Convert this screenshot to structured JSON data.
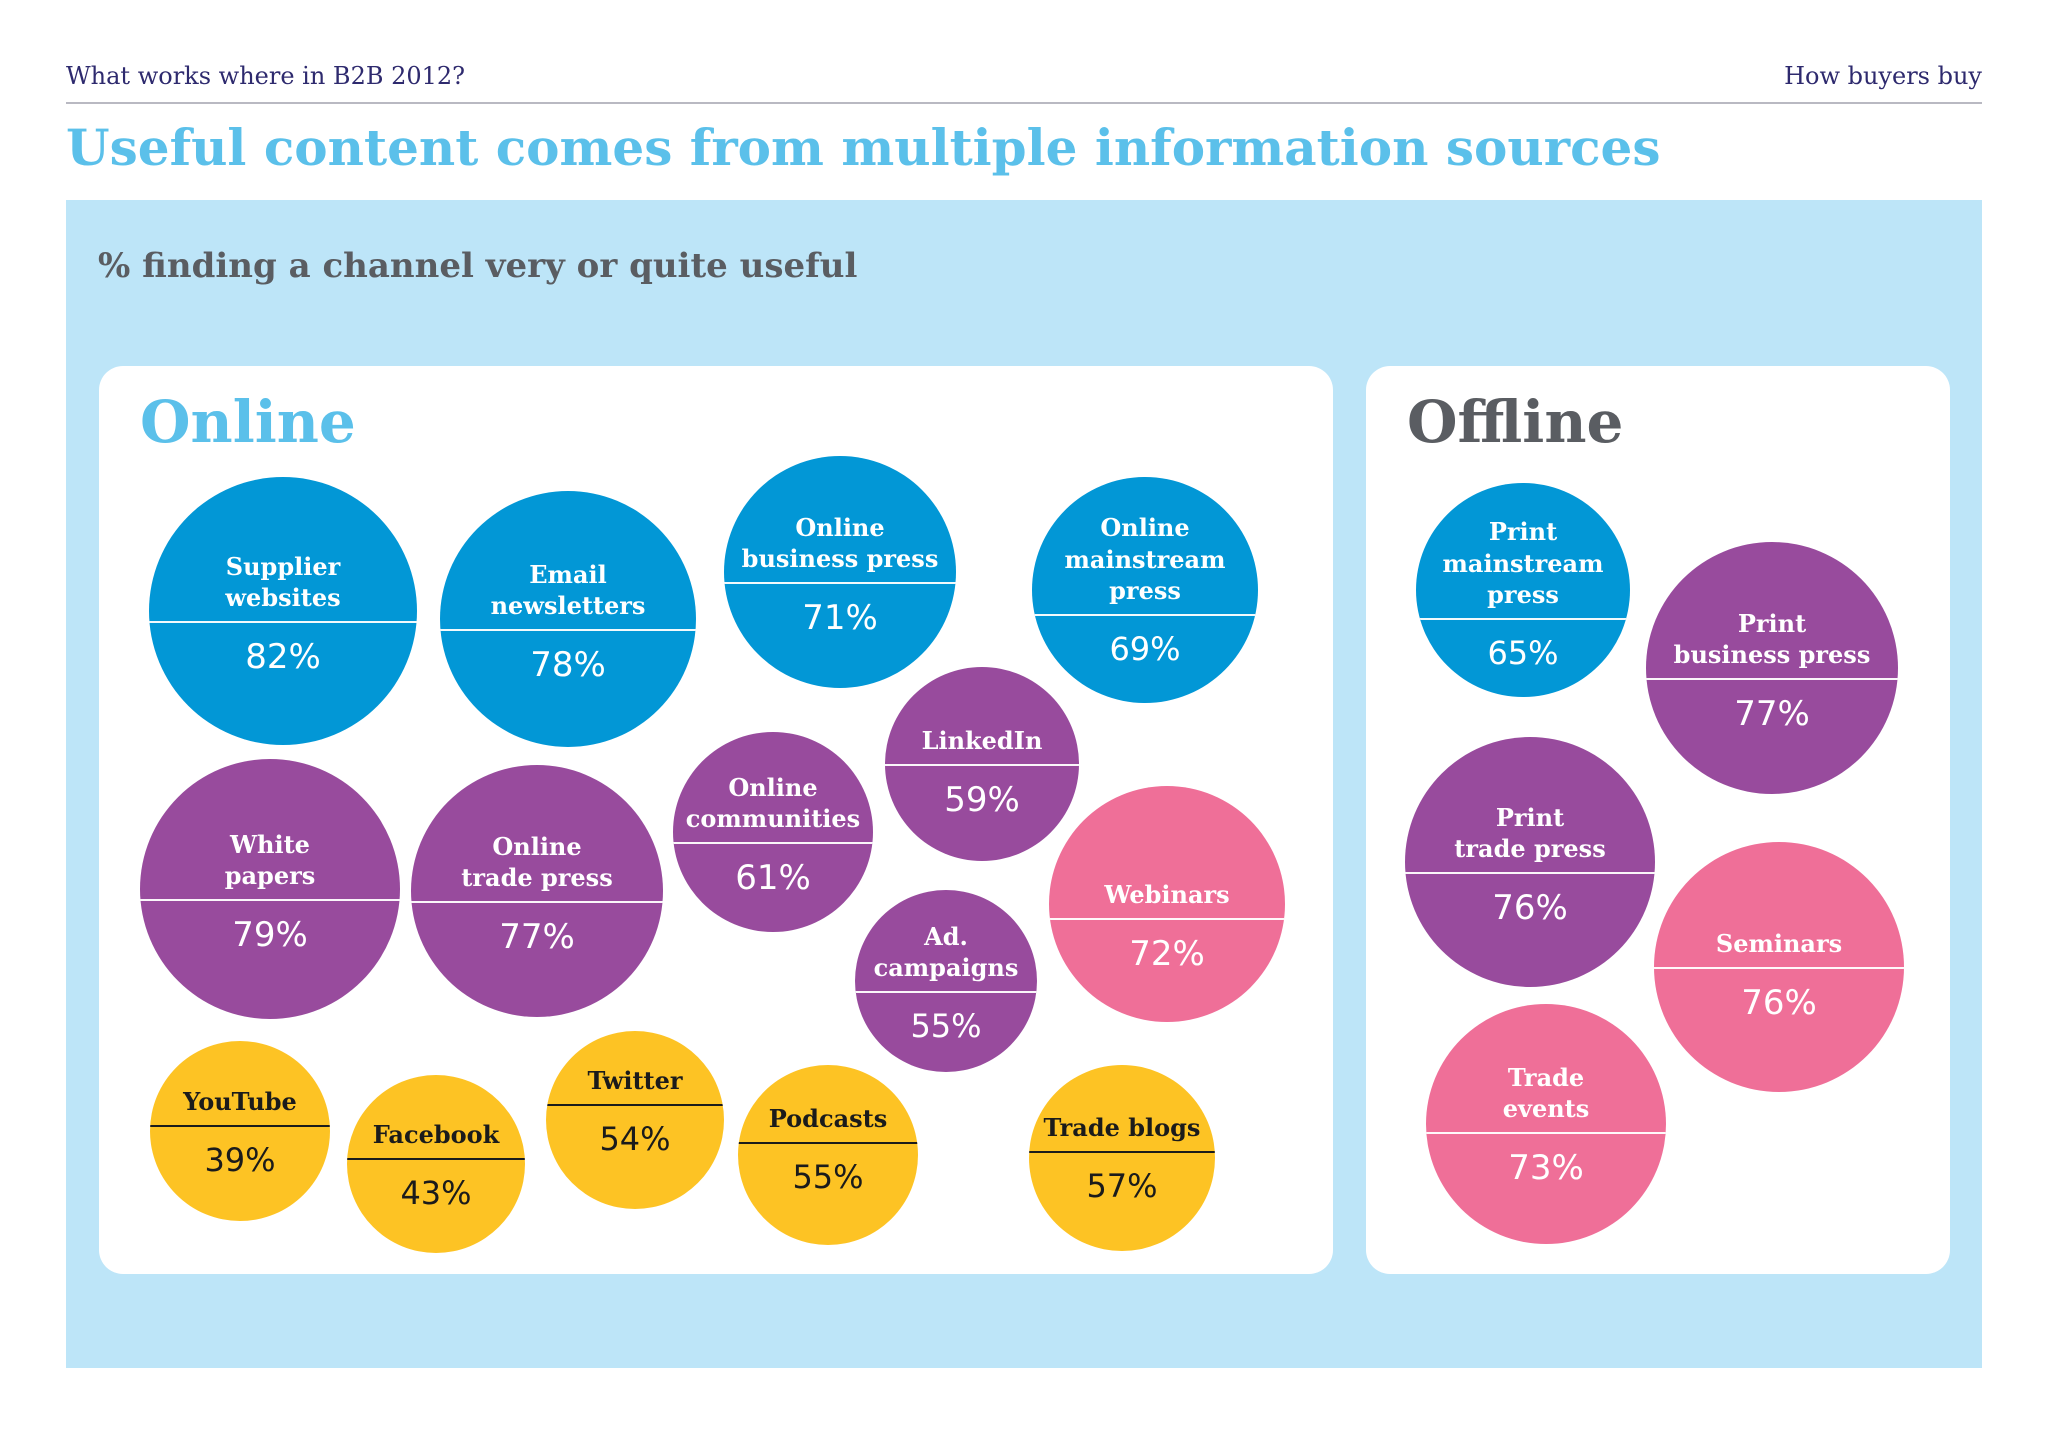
{
  "header": {
    "left": "What works where in B2B 2012?",
    "right": "How buyers buy"
  },
  "title": "Useful content comes from multiple information sources",
  "colors": {
    "blue": "#0297d6",
    "purple": "#984b9d",
    "pink": "#ef6f98",
    "yellow": "#fdc324",
    "title_blue": "#5bc0ea",
    "panel_bg": "#bde5f8",
    "offline_grey": "#5a5d62"
  },
  "chart_data": {
    "type": "bubble",
    "title": "% finding a channel very or quite useful",
    "unit": "%",
    "groups": [
      {
        "name": "Online",
        "items": [
          {
            "label": "Supplier\nwebsites",
            "value": 82,
            "color": "blue"
          },
          {
            "label": "Email\nnewsletters",
            "value": 78,
            "color": "blue"
          },
          {
            "label": "Online\nbusiness press",
            "value": 71,
            "color": "blue"
          },
          {
            "label": "Online\nmainstream\npress",
            "value": 69,
            "color": "blue"
          },
          {
            "label": "White\npapers",
            "value": 79,
            "color": "purple"
          },
          {
            "label": "Online\ntrade press",
            "value": 77,
            "color": "purple"
          },
          {
            "label": "Online\ncommunities",
            "value": 61,
            "color": "purple"
          },
          {
            "label": "LinkedIn",
            "value": 59,
            "color": "purple"
          },
          {
            "label": "Ad.\ncampaigns",
            "value": 55,
            "color": "purple"
          },
          {
            "label": "Webinars",
            "value": 72,
            "color": "pink"
          },
          {
            "label": "YouTube",
            "value": 39,
            "color": "yellow"
          },
          {
            "label": "Facebook",
            "value": 43,
            "color": "yellow"
          },
          {
            "label": "Twitter",
            "value": 54,
            "color": "yellow"
          },
          {
            "label": "Podcasts",
            "value": 55,
            "color": "yellow"
          },
          {
            "label": "Trade blogs",
            "value": 57,
            "color": "yellow"
          }
        ]
      },
      {
        "name": "Offline",
        "items": [
          {
            "label": "Print\nmainstream\npress",
            "value": 65,
            "color": "blue"
          },
          {
            "label": "Print\nbusiness press",
            "value": 77,
            "color": "purple"
          },
          {
            "label": "Print\ntrade press",
            "value": 76,
            "color": "purple"
          },
          {
            "label": "Seminars",
            "value": 76,
            "color": "pink"
          },
          {
            "label": "Trade\nevents",
            "value": 73,
            "color": "pink"
          }
        ]
      }
    ]
  }
}
